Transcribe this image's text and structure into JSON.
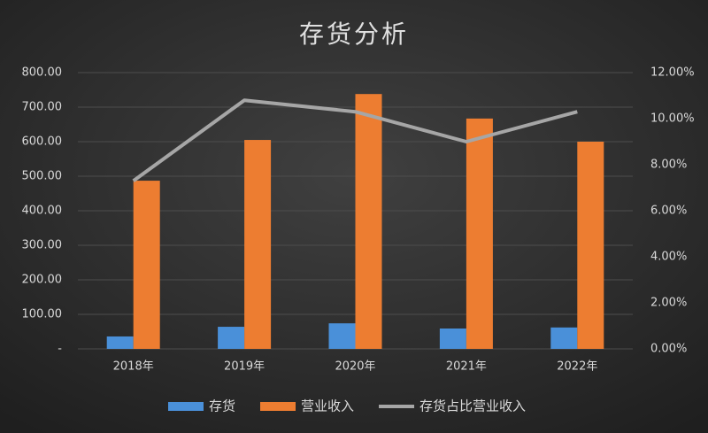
{
  "chart_data": {
    "type": "bar",
    "title": "存货分析",
    "categories": [
      "2018年",
      "2019年",
      "2020年",
      "2021年",
      "2022年"
    ],
    "series": [
      {
        "name": "存货",
        "color": "#4a90d9",
        "values": [
          36,
          64,
          74,
          59,
          62
        ]
      },
      {
        "name": "营业收入",
        "color": "#ed7d31",
        "values": [
          487,
          605,
          738,
          667,
          600
        ]
      },
      {
        "name": "存货占比营业收入",
        "color": "#a6a6a6",
        "type": "line",
        "axis": "y2",
        "values": [
          7.3,
          10.8,
          10.3,
          9.0,
          10.3
        ]
      }
    ],
    "ylim": [
      0,
      800
    ],
    "yticks": [
      {
        "value": 0,
        "label": "-"
      },
      {
        "value": 100,
        "label": "100.00"
      },
      {
        "value": 200,
        "label": "200.00"
      },
      {
        "value": 300,
        "label": "300.00"
      },
      {
        "value": 400,
        "label": "400.00"
      },
      {
        "value": 500,
        "label": "500.00"
      },
      {
        "value": 600,
        "label": "600.00"
      },
      {
        "value": 700,
        "label": "700.00"
      },
      {
        "value": 800,
        "label": "800.00"
      }
    ],
    "y2lim": [
      0,
      12
    ],
    "y2ticks": [
      {
        "value": 0,
        "label": "0.00%"
      },
      {
        "value": 2,
        "label": "2.00%"
      },
      {
        "value": 4,
        "label": "4.00%"
      },
      {
        "value": 6,
        "label": "6.00%"
      },
      {
        "value": 8,
        "label": "8.00%"
      },
      {
        "value": 10,
        "label": "10.00%"
      },
      {
        "value": 12,
        "label": "12.00%"
      }
    ],
    "grid": true,
    "legend": "bottom"
  }
}
